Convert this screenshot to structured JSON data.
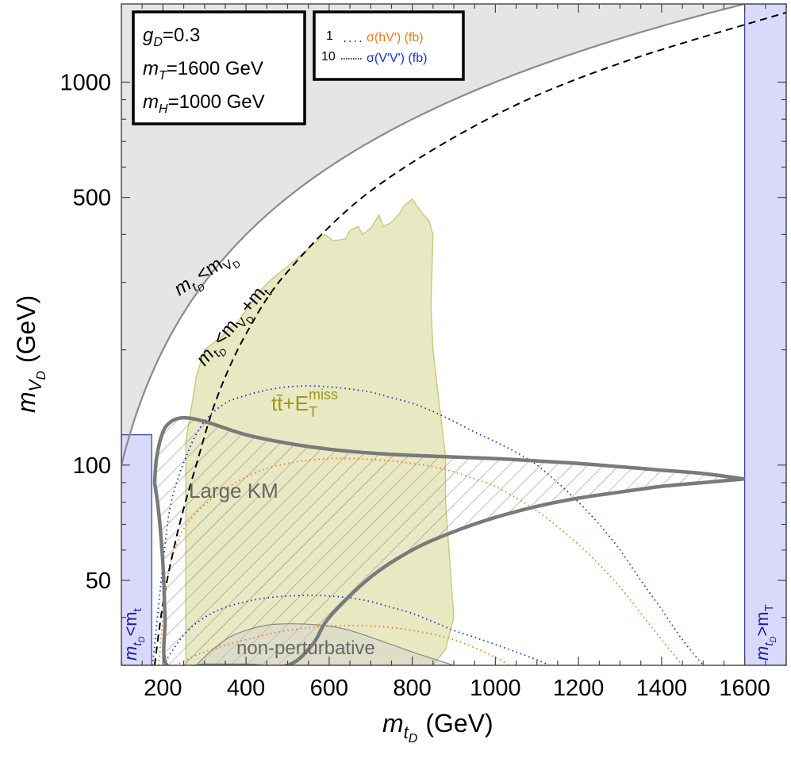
{
  "chart_data": {
    "type": "line",
    "xlabel": {
      "main": "m",
      "sub": "t",
      "subsub": "D",
      "unit": "(GeV)"
    },
    "ylabel": {
      "main": "m",
      "sub": "V",
      "subsub": "D",
      "unit": "(GeV)"
    },
    "xlim": [
      100,
      1700
    ],
    "ylim": [
      30,
      1600
    ],
    "y_scale": "log",
    "x_ticks": [
      200,
      400,
      600,
      800,
      1000,
      1200,
      1400,
      1600
    ],
    "x_tick_labels": [
      "200",
      "400",
      "600",
      "800",
      "1000",
      "1200",
      "1400",
      "1600"
    ],
    "y_ticks": [
      50,
      100,
      500,
      1000
    ],
    "y_tick_labels": [
      "50",
      "100",
      "500",
      "1000"
    ],
    "params_box": {
      "g": {
        "sym": "g",
        "sub": "D",
        "rest": "=0.3"
      },
      "mT": {
        "sym": "m",
        "sub": "T",
        "rest": "=1600 GeV"
      },
      "mH": {
        "sym": "m",
        "sub": "H",
        "rest": "=1000 GeV"
      }
    },
    "legend": [
      {
        "marker": "1",
        "label": "σ(hV') (fb)",
        "color": "#f07a10"
      },
      {
        "marker": "10",
        "label": "σ(V'V') (fb)",
        "color": "#1a2ee0"
      }
    ],
    "annotations": {
      "kinematic_curve": {
        "a": "m",
        "b": "t",
        "c": "D",
        "d": "<m",
        "e": "V",
        "f": "D"
      },
      "top_curve": {
        "a": "m",
        "b": "t",
        "c": "D",
        "d": "<m",
        "e": "V",
        "f": "D",
        "g": "+m",
        "h": "t"
      },
      "ttbar": {
        "main": "tt̄+E",
        "sub": "T",
        "sup": "miss"
      },
      "large_km": "Large KM",
      "nonpert": "non-perturbative",
      "left_band": {
        "a": "m",
        "b": "t",
        "c": "D",
        "d": "<m",
        "e": "t"
      },
      "right_band": {
        "a": "m",
        "b": "t",
        "c": "D",
        "d": ">m",
        "e": "T"
      }
    },
    "series": [
      {
        "name": "kinematic boundary m_tD = m_VD",
        "x": [
          100,
          1700
        ],
        "y": [
          100,
          1700
        ]
      },
      {
        "name": "m_tD = m_VD + m_t (dashed)",
        "x": [
          180,
          195,
          210,
          240,
          280,
          330,
          400,
          500,
          700,
          1000,
          1300,
          1700
        ],
        "y": [
          30,
          40,
          50,
          70,
          100,
          150,
          220,
          320,
          520,
          820,
          1120,
          1520
        ]
      },
      {
        "name": "ttbar + MET excluded region",
        "x": [
          255,
          255,
          268,
          280,
          300,
          320,
          345,
          360,
          380,
          390,
          410,
          430,
          460,
          500,
          560,
          590,
          610,
          640,
          650,
          670,
          680,
          700,
          720,
          730,
          750,
          770,
          780,
          800,
          820,
          840,
          850,
          848,
          845,
          850,
          860,
          870,
          880,
          880,
          900,
          880,
          860,
          850,
          830,
          800,
          780,
          760,
          740,
          720,
          700,
          680,
          660,
          640,
          620,
          600,
          580,
          560,
          540,
          520,
          500,
          480,
          460,
          440,
          420,
          400,
          380,
          360,
          340,
          320,
          300,
          280,
          260,
          255
        ],
        "y": [
          30,
          115,
          140,
          170,
          200,
          208,
          218,
          228,
          235,
          245,
          262,
          282,
          305,
          330,
          375,
          400,
          385,
          390,
          410,
          420,
          400,
          415,
          450,
          420,
          430,
          455,
          475,
          495,
          460,
          435,
          400,
          340,
          260,
          200,
          160,
          130,
          105,
          80,
          40,
          33,
          31,
          30,
          30,
          30,
          30,
          30,
          30,
          30,
          30,
          30,
          30,
          30,
          30,
          30,
          30,
          30,
          30,
          30,
          30,
          30,
          30,
          30,
          30,
          30,
          30,
          30,
          30,
          30,
          30,
          30,
          30,
          30
        ]
      },
      {
        "name": "Large KM boundary (upper)",
        "x": [
          180,
          185,
          200,
          220,
          250,
          300,
          400,
          500,
          600,
          700,
          800,
          900,
          1000,
          1100,
          1200,
          1300,
          1400,
          1500,
          1600
        ],
        "y": [
          90,
          105,
          122,
          130,
          133,
          130,
          120,
          114,
          110,
          107.5,
          106,
          105,
          104,
          102.5,
          101,
          99,
          97,
          95,
          92
        ]
      },
      {
        "name": "Large KM boundary (lower)",
        "x": [
          180,
          190,
          200,
          205,
          210,
          300,
          400,
          500,
          560,
          600,
          700,
          800,
          900,
          1000,
          1100,
          1200,
          1300,
          1400,
          1500,
          1600
        ],
        "y": [
          90,
          75,
          55,
          40,
          30,
          30,
          30,
          30,
          34,
          40,
          51,
          60,
          67,
          73,
          78,
          82,
          85,
          88,
          90,
          92
        ]
      },
      {
        "name": "non-perturbative region",
        "x": [
          280,
          320,
          360,
          400,
          450,
          500,
          550,
          600,
          650,
          700,
          750,
          800,
          850,
          900
        ],
        "y": [
          30,
          33,
          35.5,
          37,
          38.2,
          38.5,
          38.4,
          38,
          37,
          35.5,
          34,
          32.5,
          31.2,
          30
        ]
      },
      {
        "name": "σ(V'V') contour",
        "x": [
          175,
          200,
          220,
          260,
          300,
          350,
          400,
          450,
          500,
          550,
          600,
          650,
          700,
          750,
          800,
          850,
          900,
          950,
          1000,
          1050,
          1100,
          1150,
          1200,
          1250,
          1300,
          1350,
          1400,
          1450,
          1500
        ],
        "y": [
          30,
          55,
          80,
          108,
          130,
          145,
          152,
          157,
          160,
          161,
          160,
          158,
          155,
          150,
          145,
          138,
          130,
          122,
          115,
          108,
          100,
          90,
          80,
          70,
          60,
          50,
          42,
          35,
          30
        ]
      },
      {
        "name": "σ(hV') contour",
        "x": [
          190,
          210,
          240,
          280,
          320,
          360,
          400,
          450,
          500,
          550,
          600,
          650,
          700,
          750,
          800,
          850,
          900,
          950,
          1000,
          1050,
          1100,
          1150,
          1200,
          1250,
          1300,
          1350,
          1400,
          1450
        ],
        "y": [
          30,
          50,
          65,
          75,
          82,
          88,
          93,
          98,
          101,
          103,
          104,
          104,
          103.5,
          102.5,
          101,
          99,
          96,
          92,
          88,
          82,
          76,
          69,
          62,
          55,
          48,
          41,
          35,
          30
        ]
      },
      {
        "name": "σ(V'V') inner contour",
        "x": [
          200,
          250,
          300,
          350,
          400,
          450,
          500,
          550,
          600,
          650,
          700,
          750,
          800,
          850,
          900,
          950,
          1000,
          1050,
          1100,
          1130
        ],
        "y": [
          30,
          36,
          40,
          42.5,
          44,
          45,
          45.5,
          45.7,
          45.5,
          45,
          44,
          42.5,
          41,
          39,
          37,
          35.5,
          34,
          32.5,
          31,
          30
        ]
      },
      {
        "name": "σ(hV') inner contour",
        "x": [
          230,
          300,
          400,
          500,
          600,
          700,
          800,
          900,
          1000,
          1030
        ],
        "y": [
          30,
          32.5,
          35,
          37,
          38,
          38,
          37,
          35,
          31.5,
          30
        ]
      },
      {
        "name": "left band m_tD < m_t",
        "x": [
          100,
          173
        ],
        "y": [
          30,
          120
        ]
      },
      {
        "name": "right band m_tD > m_T",
        "x": [
          1600,
          1700
        ],
        "y": [
          30,
          1600
        ]
      }
    ]
  }
}
